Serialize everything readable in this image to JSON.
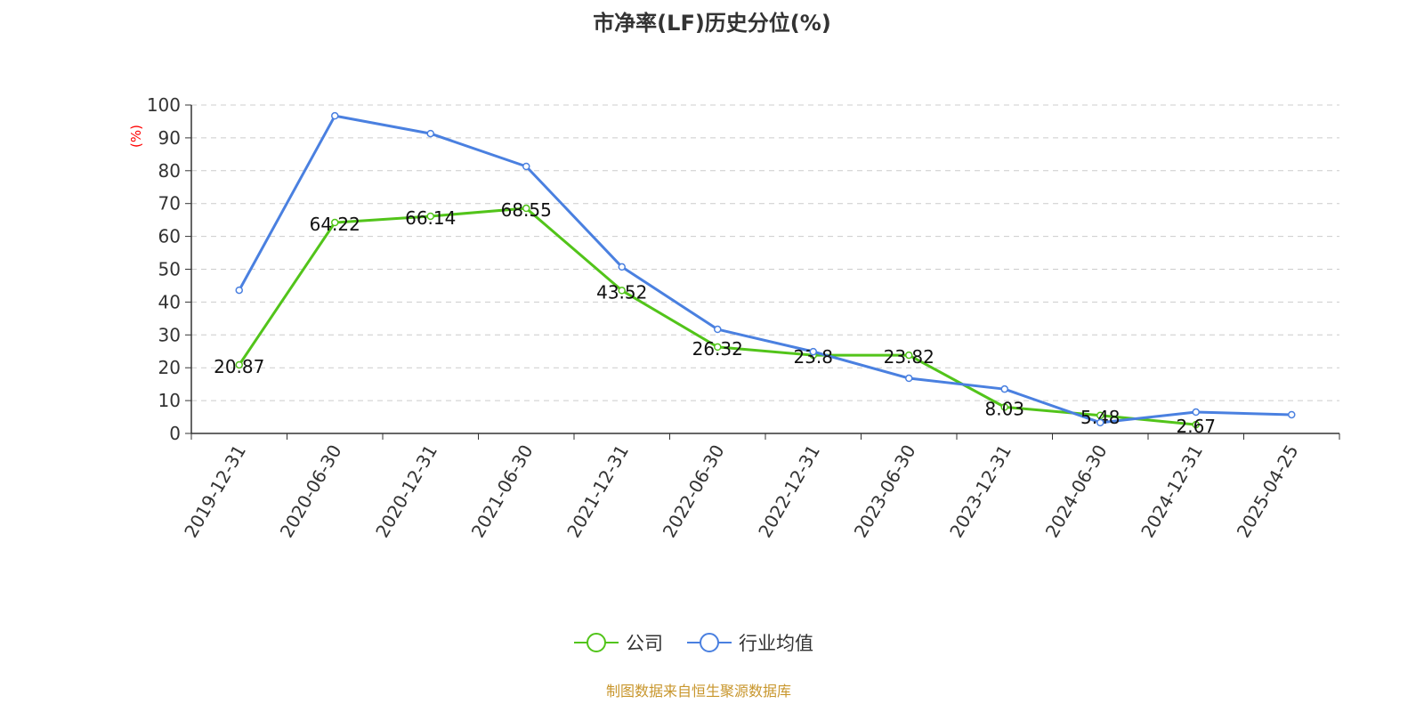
{
  "chart_data": {
    "type": "line",
    "title": "市净率(LF)历史分位(%)",
    "ylabel": "(%)",
    "xlabel": "",
    "ylim": [
      0,
      100
    ],
    "yticks": [
      0,
      10,
      20,
      30,
      40,
      50,
      60,
      70,
      80,
      90,
      100
    ],
    "grid": true,
    "legend_position": "bottom-center",
    "categories": [
      "2019-12-31",
      "2020-06-30",
      "2020-12-31",
      "2021-06-30",
      "2021-12-31",
      "2022-06-30",
      "2022-12-31",
      "2023-06-30",
      "2023-12-31",
      "2024-06-30",
      "2024-12-31",
      "2025-04-25"
    ],
    "series": [
      {
        "name": "公司",
        "color": "#52c41a",
        "labels": true,
        "values": [
          20.87,
          64.22,
          66.14,
          68.55,
          43.52,
          26.32,
          23.8,
          23.82,
          8.03,
          5.48,
          2.67,
          null
        ]
      },
      {
        "name": "行业均值",
        "color": "#4a80e0",
        "labels": false,
        "values": [
          43.6,
          96.7,
          91.3,
          81.3,
          50.7,
          31.7,
          24.9,
          16.8,
          13.5,
          3.3,
          6.5,
          5.7
        ]
      }
    ]
  },
  "source": "制图数据来自恒生聚源数据库"
}
